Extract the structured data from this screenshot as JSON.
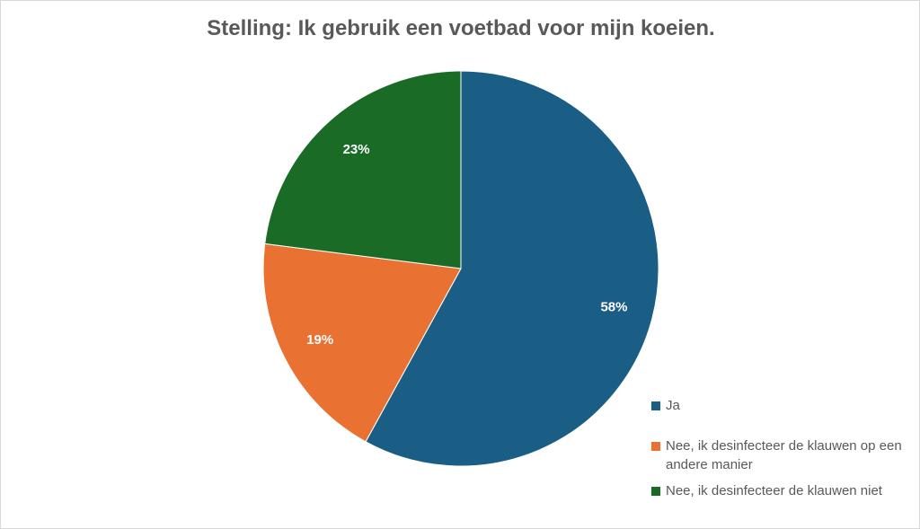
{
  "chart_data": {
    "type": "pie",
    "title": "Stelling: Ik gebruik een voetbad voor mijn koeien.",
    "categories": [
      "Ja",
      "Nee, ik desinfecteer de klauwen op een andere manier",
      "Nee, ik desinfecteer de klauwen niet"
    ],
    "values": [
      58,
      19,
      23
    ],
    "value_labels": [
      "58%",
      "19%",
      "23%"
    ],
    "colors": [
      "#1b5e85",
      "#e97132",
      "#1a6b26"
    ],
    "legend": "right"
  }
}
